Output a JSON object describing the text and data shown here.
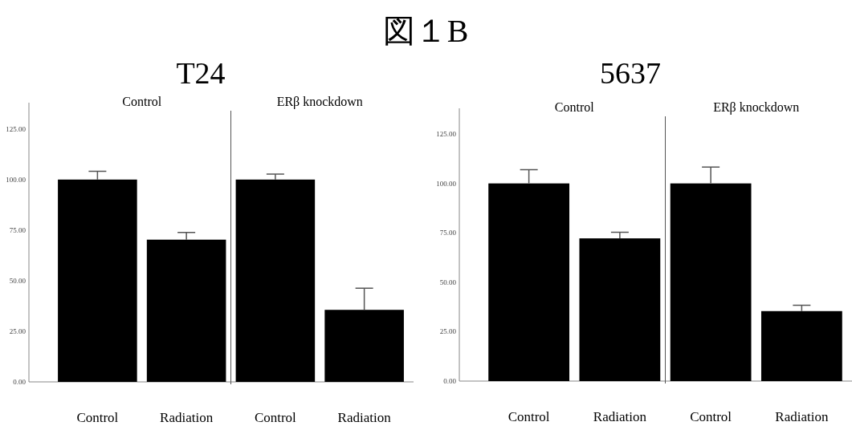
{
  "chart_data": [
    {
      "type": "bar",
      "title": "T24",
      "categories": [
        "Control",
        "Radiation",
        "Control",
        "Radiation"
      ],
      "series": [
        {
          "color": "#000000",
          "values": [
            100,
            70.3,
            100,
            35.6
          ],
          "errors": [
            [
              100,
              104.1
            ],
            [
              70.3,
              73.9
            ],
            [
              100,
              102.7
            ],
            [
              35.6,
              46.3
            ]
          ]
        }
      ],
      "ylim": [
        0,
        138
      ],
      "yticks": [
        {
          "value": 0,
          "label": "0.00"
        },
        {
          "value": 25,
          "label": "25.00"
        },
        {
          "value": 50,
          "label": "50.00"
        },
        {
          "value": 75,
          "label": "75.00"
        },
        {
          "value": 100,
          "label": "100.00"
        },
        {
          "value": 125,
          "label": "125.00"
        }
      ],
      "annotations": [
        "図１B",
        "Control",
        "ERβ knockdown"
      ]
    },
    {
      "type": "bar",
      "title": "5637",
      "categories": [
        "Control",
        "Radiation",
        "Control",
        "Radiation"
      ],
      "series": [
        {
          "color": "#000000",
          "values": [
            100,
            72.2,
            100,
            35.4
          ],
          "errors": [
            [
              100,
              106.9
            ],
            [
              72.2,
              75.3
            ],
            [
              100,
              108.3
            ],
            [
              35.4,
              38.4
            ]
          ]
        }
      ],
      "ylim": [
        0,
        138
      ],
      "yticks": [
        {
          "value": 0,
          "label": "0.00"
        },
        {
          "value": 25,
          "label": "25.00"
        },
        {
          "value": 50,
          "label": "50.00"
        },
        {
          "value": 75,
          "label": "75.00"
        },
        {
          "value": 100,
          "label": "100.00"
        },
        {
          "value": 125,
          "label": "125.00"
        }
      ],
      "annotations": [
        "Control",
        "ERβ knockdown"
      ]
    }
  ]
}
